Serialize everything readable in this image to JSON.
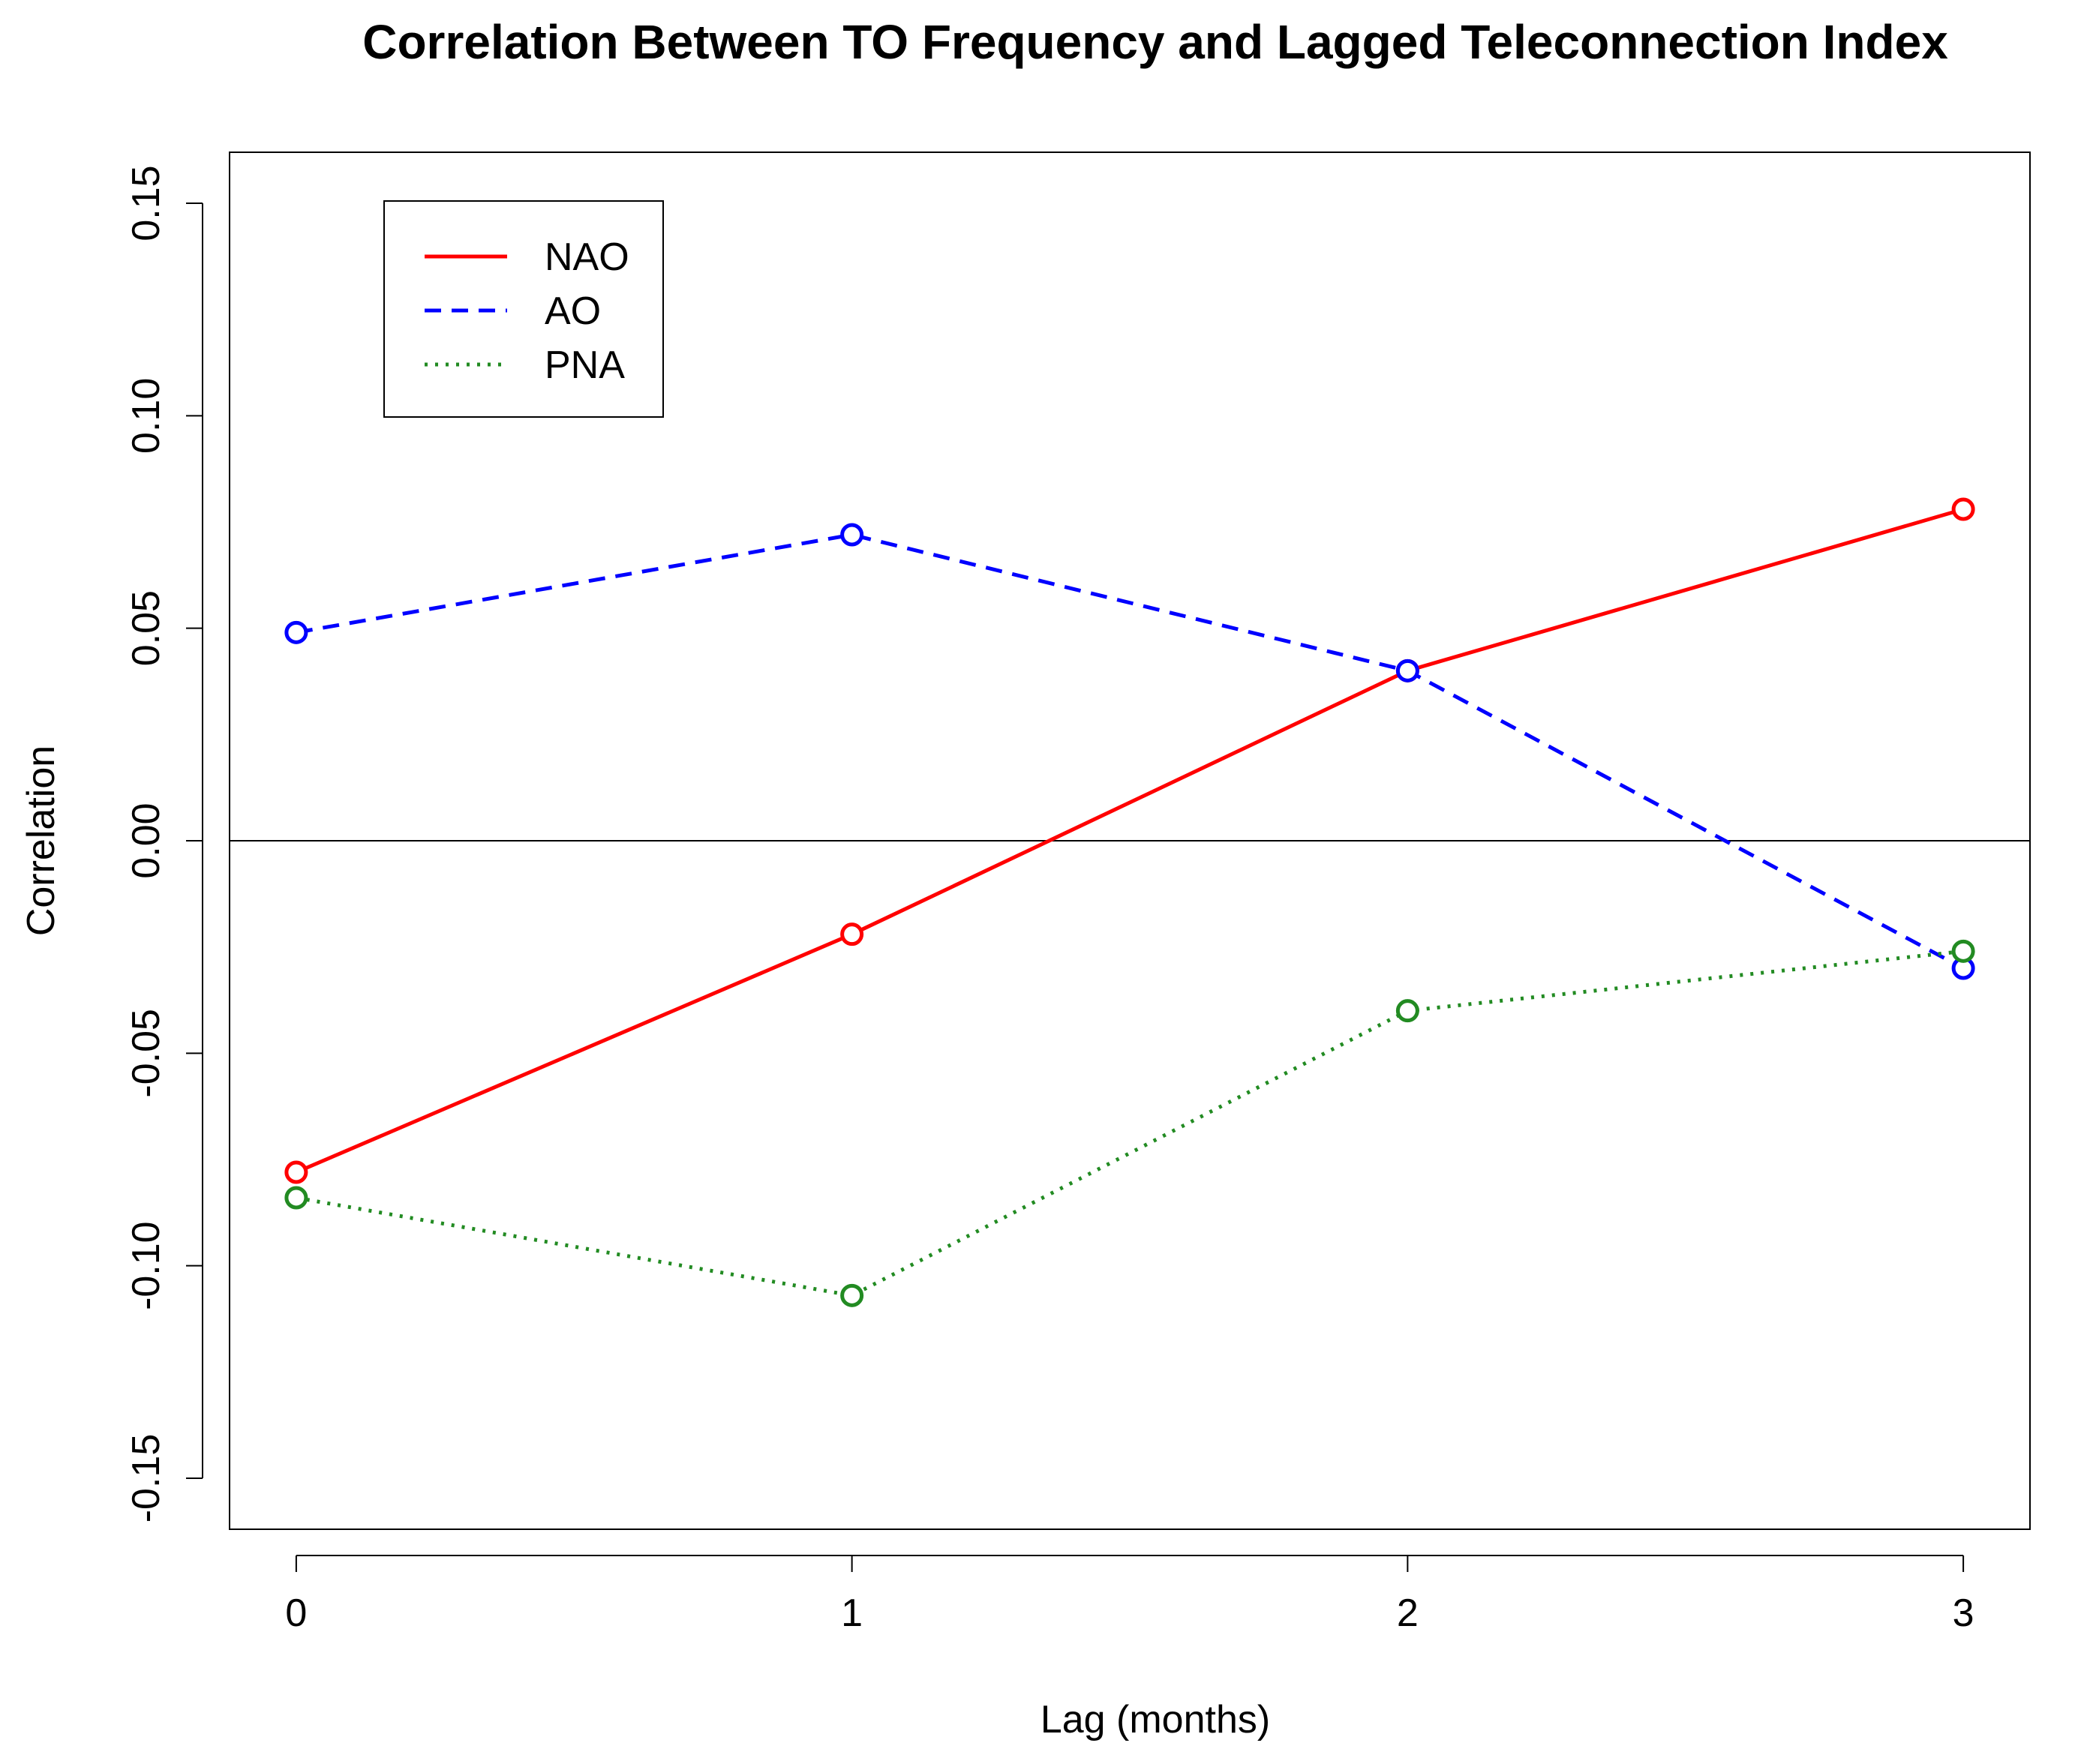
{
  "chart_data": {
    "type": "line",
    "title": "Correlation Between TO Frequency and Lagged Teleconnection Index",
    "xlabel": "Lag (months)",
    "ylabel": "Correlation",
    "x": [
      0,
      1,
      2,
      3
    ],
    "xticks": [
      "0",
      "1",
      "2",
      "3"
    ],
    "xlim": [
      -0.12,
      3.12
    ],
    "ylim": [
      -0.162,
      0.162
    ],
    "yticks": [
      "-0.15",
      "-0.10",
      "-0.05",
      "0.00",
      "0.05",
      "0.10",
      "0.15"
    ],
    "reference_line_y": 0,
    "grid": false,
    "legend_position": "top-left",
    "markers": "open-circle",
    "series": [
      {
        "name": "NAO",
        "values": [
          -0.078,
          -0.022,
          0.04,
          0.078
        ],
        "color": "#ff0000",
        "line_style": "solid"
      },
      {
        "name": "AO",
        "values": [
          0.049,
          0.072,
          0.04,
          -0.03
        ],
        "color": "#0000ff",
        "line_style": "dashed"
      },
      {
        "name": "PNA",
        "values": [
          -0.084,
          -0.107,
          -0.04,
          -0.026
        ],
        "color": "#228b22",
        "line_style": "dotted"
      }
    ]
  }
}
